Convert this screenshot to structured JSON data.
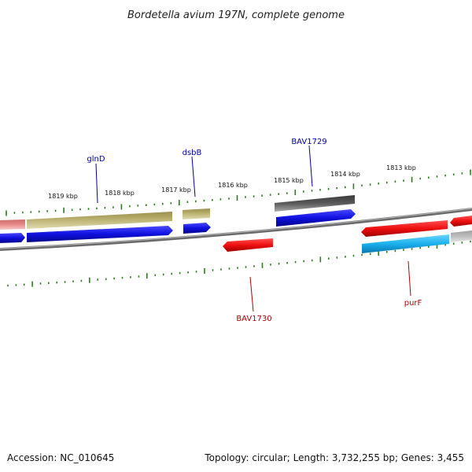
{
  "title": "Bordetella avium 197N, complete genome",
  "footer": {
    "accession": "Accession: NC_010645",
    "topology": "Topology: circular; Length: 3,732,255 bp; Genes: 3,455"
  },
  "scale_labels": [
    "1819 kbp",
    "1818 kbp",
    "1817 kbp",
    "1816 kbp",
    "1815 kbp",
    "1814 kbp",
    "1813 kbp"
  ],
  "gene_labels": {
    "glnD": "glnD",
    "dsbB": "dsbB",
    "BAV1729": "BAV1729",
    "BAV1730": "BAV1730",
    "purF": "purF"
  },
  "colors": {
    "backbone": "#8a8a8a",
    "tick": "#2e7d1e",
    "gene_blue": "#1010e0",
    "gene_olive": "#b7ad6b",
    "gene_red": "#ee1010",
    "gene_pink": "#e88a8a",
    "gene_gray": "#5a5a5a",
    "gene_lightgray": "#bdbdbd",
    "gene_cyan": "#1ab0ee",
    "label_blue": "#0000a0",
    "label_red": "#b00000"
  }
}
